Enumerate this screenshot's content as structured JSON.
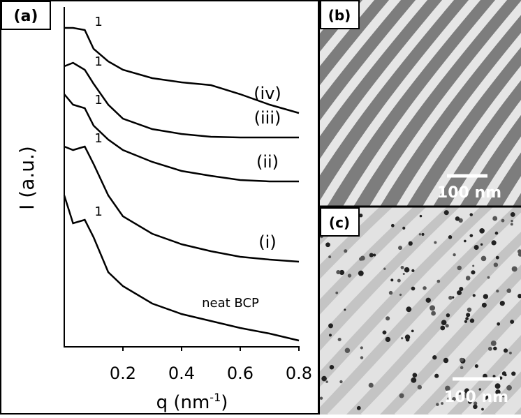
{
  "panels": {
    "a": "(a)",
    "b": "(b)",
    "c": "(c)"
  },
  "scale_bars": [
    "100 nm",
    "100 nm"
  ],
  "chart_data": {
    "type": "line",
    "ylabel": "I (a.u.)",
    "xlabel_parts": [
      "q (nm",
      "-1",
      ")"
    ],
    "x": [
      0,
      0.03,
      0.07,
      0.1,
      0.15,
      0.2,
      0.3,
      0.4,
      0.5,
      0.6,
      0.7,
      0.8
    ],
    "xlim": [
      0,
      0.8
    ],
    "xticks": [
      0.2,
      0.4,
      0.6,
      0.8
    ],
    "ylim": [
      0,
      490
    ],
    "series": [
      {
        "name": "(iv)",
        "color": "#000000",
        "peak_label": "1",
        "values": [
          460,
          460,
          457,
          430,
          412,
          400,
          388,
          382,
          378,
          365,
          350,
          338
        ]
      },
      {
        "name": "(iii)",
        "color": "#000000",
        "peak_label": "1",
        "values": [
          405,
          410,
          400,
          380,
          350,
          330,
          315,
          308,
          304,
          303,
          303,
          303
        ]
      },
      {
        "name": "(ii)",
        "color": "#000000",
        "peak_label": "1",
        "values": [
          365,
          350,
          345,
          320,
          300,
          285,
          268,
          255,
          248,
          242,
          240,
          240
        ]
      },
      {
        "name": "(i)",
        "color": "#000000",
        "peak_label": "1",
        "values": [
          290,
          285,
          290,
          265,
          220,
          190,
          165,
          150,
          140,
          132,
          128,
          125
        ]
      },
      {
        "name": "neat BCP",
        "color": "#000000",
        "peak_label": "1",
        "values": [
          220,
          180,
          185,
          160,
          110,
          90,
          65,
          50,
          40,
          30,
          22,
          12
        ]
      }
    ]
  }
}
